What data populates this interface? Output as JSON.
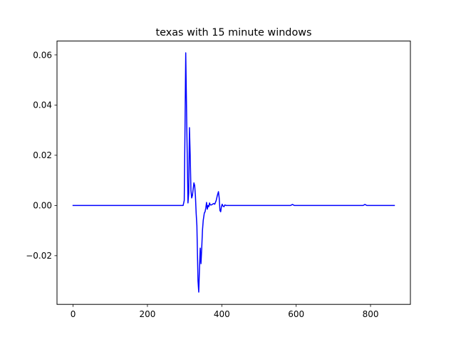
{
  "chart_data": {
    "type": "line",
    "title": "texas with 15 minute windows",
    "xlabel": "",
    "ylabel": "",
    "xlim": [
      -43.2,
      907.2
    ],
    "ylim": [
      -0.0394,
      0.0655
    ],
    "xticks": [
      0,
      200,
      400,
      600,
      800
    ],
    "xtick_labels": [
      "0",
      "200",
      "400",
      "600",
      "800"
    ],
    "yticks": [
      -0.02,
      0.0,
      0.02,
      0.04,
      0.06
    ],
    "ytick_labels": [
      "−0.02",
      "0.00",
      "0.02",
      "0.04",
      "0.06"
    ],
    "grid": false,
    "legend": "none",
    "series": [
      {
        "color": "#0000ff",
        "x": [
          0,
          100,
          200,
          290,
          296,
          299,
          301,
          303,
          306,
          309,
          311,
          313,
          315,
          317,
          319,
          321,
          323,
          325,
          327,
          329,
          331,
          333,
          336,
          338,
          340,
          342,
          344,
          346,
          348,
          350,
          353,
          355,
          357,
          359,
          361,
          363,
          365,
          367,
          369,
          372,
          375,
          378,
          381,
          385,
          388,
          391,
          393,
          395,
          397,
          399,
          401,
          403,
          406,
          408,
          412,
          420,
          450,
          500,
          550,
          585,
          590,
          595,
          650,
          700,
          780,
          785,
          790,
          864
        ],
        "y": [
          0.0,
          0.0,
          0.0,
          0.0,
          0.0,
          0.002,
          0.03,
          0.0608,
          0.03,
          0.001,
          0.005,
          0.031,
          0.02,
          0.006,
          0.003,
          0.004,
          0.0065,
          0.009,
          0.008,
          0.004,
          -0.003,
          -0.008,
          -0.03,
          -0.0345,
          -0.025,
          -0.017,
          -0.0232,
          -0.017,
          -0.01,
          -0.006,
          -0.003,
          -0.0025,
          -0.001,
          0.0012,
          -0.0015,
          0.0,
          -0.0005,
          0.001,
          0.0002,
          0.0002,
          0.0005,
          0.0008,
          0.0005,
          0.002,
          0.004,
          0.0055,
          0.003,
          -0.002,
          -0.0025,
          -0.0005,
          0.0005,
          -0.0002,
          -0.0005,
          0.0002,
          0.0,
          0.0,
          0.0,
          0.0,
          0.0,
          0.0,
          0.0004,
          0.0,
          0.0,
          0.0,
          0.0,
          0.0004,
          0.0,
          0.0
        ]
      }
    ]
  }
}
